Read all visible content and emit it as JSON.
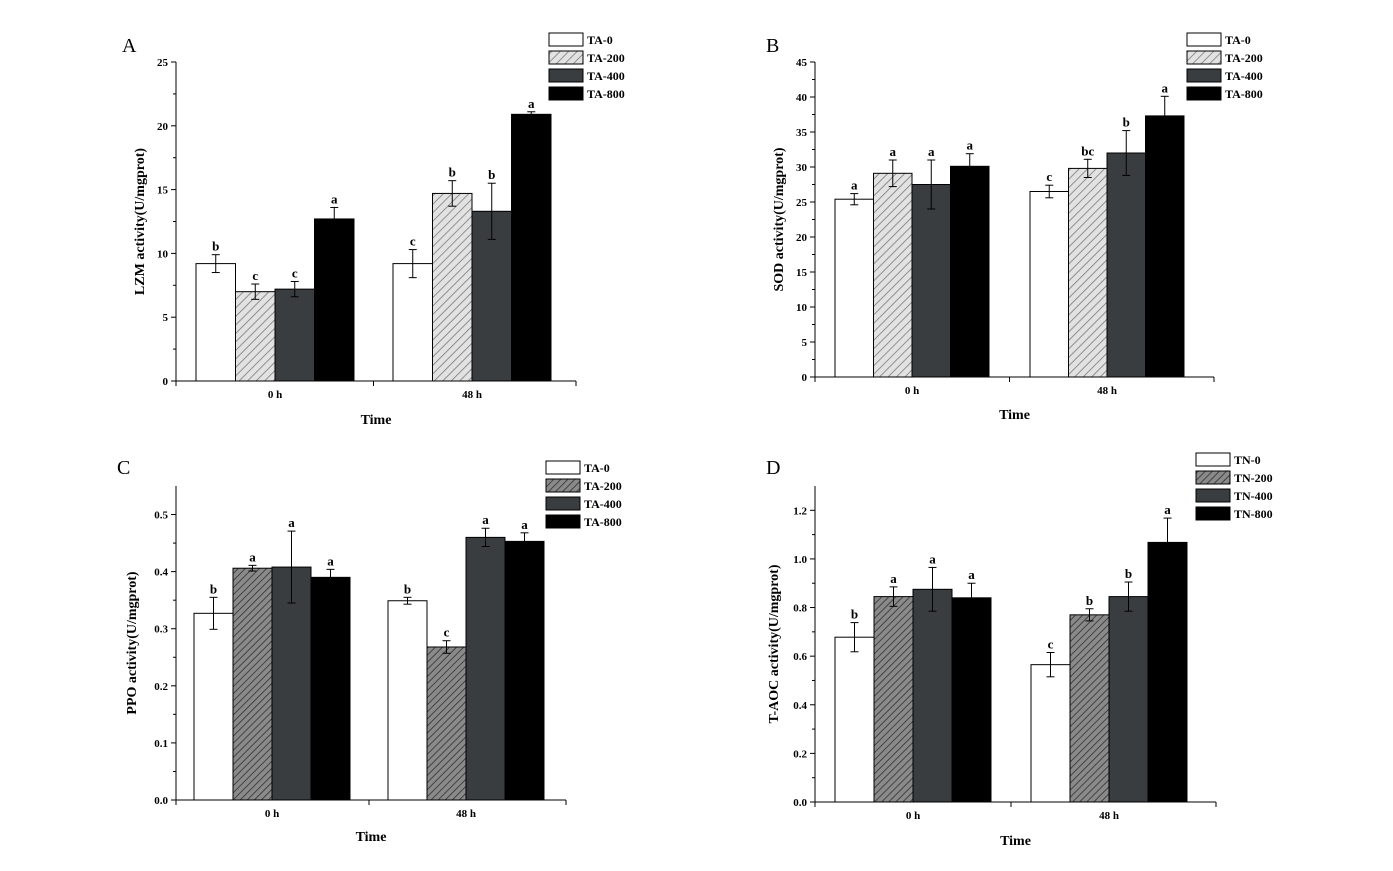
{
  "figure": {
    "description_hidden": false
  },
  "colors": {
    "white": "#ffffff",
    "light_hatch": "#c8c8c8",
    "dark_hatch": "#6a6a6a",
    "dark": "#3a3d40",
    "black": "#000000"
  },
  "chart_data": [
    {
      "panel": "A",
      "type": "bar",
      "categories": [
        "0 h",
        "48 h"
      ],
      "xlabel": "Time",
      "ylabel": "LZM activity(U/mgprot)",
      "ylim": [
        0,
        25
      ],
      "yticks": [
        0,
        5,
        10,
        15,
        20,
        25
      ],
      "decimals": 0,
      "series": [
        {
          "name": "TA-0",
          "style": "white",
          "values": [
            9.2,
            9.2
          ],
          "errors": [
            0.7,
            1.1
          ],
          "letters": [
            "b",
            "c"
          ]
        },
        {
          "name": "TA-200",
          "style": "light_hatch",
          "values": [
            7.0,
            14.7
          ],
          "errors": [
            0.6,
            1.0
          ],
          "letters": [
            "c",
            "b"
          ]
        },
        {
          "name": "TA-400",
          "style": "dark",
          "values": [
            7.2,
            13.3
          ],
          "errors": [
            0.6,
            2.2
          ],
          "letters": [
            "c",
            "b"
          ]
        },
        {
          "name": "TA-800",
          "style": "black",
          "values": [
            12.7,
            20.9
          ],
          "errors": [
            0.9,
            0.2
          ],
          "letters": [
            "a",
            "a"
          ]
        }
      ]
    },
    {
      "panel": "B",
      "type": "bar",
      "categories": [
        "0 h",
        "48 h"
      ],
      "xlabel": "Time",
      "ylabel": "SOD activity(U/mgprot)",
      "ylim": [
        0,
        45
      ],
      "yticks": [
        0,
        5,
        10,
        15,
        20,
        25,
        30,
        35,
        40,
        45
      ],
      "decimals": 0,
      "series": [
        {
          "name": "TA-0",
          "style": "white",
          "values": [
            25.4,
            26.5
          ],
          "errors": [
            0.8,
            0.9
          ],
          "letters": [
            "a",
            "c"
          ]
        },
        {
          "name": "TA-200",
          "style": "light_hatch",
          "values": [
            29.1,
            29.8
          ],
          "errors": [
            1.9,
            1.3
          ],
          "letters": [
            "a",
            "bc"
          ]
        },
        {
          "name": "TA-400",
          "style": "dark",
          "values": [
            27.5,
            32.0
          ],
          "errors": [
            3.5,
            3.2
          ],
          "letters": [
            "a",
            "b"
          ]
        },
        {
          "name": "TA-800",
          "style": "black",
          "values": [
            30.1,
            37.3
          ],
          "errors": [
            1.8,
            2.8
          ],
          "letters": [
            "a",
            "a"
          ]
        }
      ]
    },
    {
      "panel": "C",
      "type": "bar",
      "categories": [
        "0 h",
        "48 h"
      ],
      "xlabel": "Time",
      "ylabel": "PPO activity(U/mgprot)",
      "ylim": [
        0,
        0.55
      ],
      "yticks": [
        0.0,
        0.1,
        0.2,
        0.3,
        0.4,
        0.5
      ],
      "decimals": 1,
      "series": [
        {
          "name": "TA-0",
          "style": "white",
          "values": [
            0.327,
            0.349
          ],
          "errors": [
            0.028,
            0.006
          ],
          "letters": [
            "b",
            "b"
          ]
        },
        {
          "name": "TA-200",
          "style": "dark_hatch",
          "values": [
            0.406,
            0.268
          ],
          "errors": [
            0.005,
            0.011
          ],
          "letters": [
            "a",
            "c"
          ]
        },
        {
          "name": "TA-400",
          "style": "dark",
          "values": [
            0.408,
            0.46
          ],
          "errors": [
            0.063,
            0.016
          ],
          "letters": [
            "a",
            "a"
          ]
        },
        {
          "name": "TA-800",
          "style": "black",
          "values": [
            0.39,
            0.453
          ],
          "errors": [
            0.014,
            0.015
          ],
          "letters": [
            "a",
            "a"
          ]
        }
      ]
    },
    {
      "panel": "D",
      "type": "bar",
      "categories": [
        "0 h",
        "48 h"
      ],
      "xlabel": "Time",
      "ylabel": "T-AOC activity(U/mgprot)",
      "ylim": [
        0,
        1.3
      ],
      "yticks": [
        0.0,
        0.2,
        0.4,
        0.6,
        0.8,
        1.0,
        1.2
      ],
      "decimals": 1,
      "series": [
        {
          "name": "TN-0",
          "style": "white",
          "values": [
            0.678,
            0.565
          ],
          "errors": [
            0.06,
            0.05
          ],
          "letters": [
            "b",
            "c"
          ]
        },
        {
          "name": "TN-200",
          "style": "dark_hatch",
          "values": [
            0.845,
            0.77
          ],
          "errors": [
            0.04,
            0.025
          ],
          "letters": [
            "a",
            "b"
          ]
        },
        {
          "name": "TN-400",
          "style": "dark",
          "values": [
            0.875,
            0.845
          ],
          "errors": [
            0.09,
            0.06
          ],
          "letters": [
            "a",
            "b"
          ]
        },
        {
          "name": "TN-800",
          "style": "black",
          "values": [
            0.84,
            1.068
          ],
          "errors": [
            0.06,
            0.1
          ],
          "letters": [
            "a",
            "a"
          ]
        }
      ]
    }
  ]
}
